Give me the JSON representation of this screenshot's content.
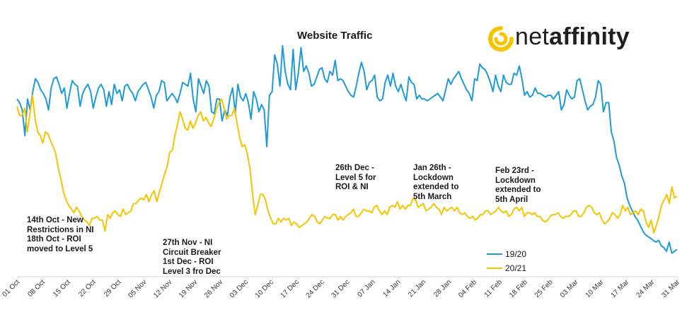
{
  "chart_data": {
    "type": "line",
    "title": "Website Traffic",
    "brand": {
      "prefix": "net",
      "suffix": "affinity",
      "accent": "#F5C400"
    },
    "x_tick_labels": [
      "01 Oct",
      "08 Oct",
      "15 Oct",
      "22 Oct",
      "29 Oct",
      "05 Nov",
      "12 Nov",
      "19 Nov",
      "26 Nov",
      "03 Dec",
      "10 Dec",
      "17 Dec",
      "24 Dec",
      "31 Dec",
      "07 Jan",
      "14 Jan",
      "21 Jan",
      "28 Jan",
      "04 Feb",
      "11 Feb",
      "18 Feb",
      "25 Feb",
      "03 Mar",
      "10 Mar",
      "17 Mar",
      "24 Mar",
      "31 Mar"
    ],
    "ylim": [
      0,
      100
    ],
    "grid": false,
    "legend_position": "bottom-right",
    "series": [
      {
        "name": "19/20",
        "color": "#1E9BD7",
        "values": [
          78,
          76,
          72,
          58,
          78,
          72,
          82,
          89,
          87,
          83,
          81,
          78,
          72,
          84,
          89,
          90,
          86,
          81,
          84,
          73,
          81,
          88,
          86,
          85,
          74,
          81,
          84,
          86,
          82,
          73,
          79,
          84,
          86,
          83,
          74,
          82,
          75,
          86,
          81,
          83,
          77,
          85,
          86,
          83,
          81,
          77,
          82,
          84,
          86,
          87,
          83,
          79,
          73,
          80,
          82,
          88,
          87,
          77,
          79,
          81,
          79,
          76,
          81,
          87,
          86,
          85,
          92,
          78,
          71,
          89,
          85,
          81,
          88,
          85,
          71,
          70,
          78,
          78,
          66,
          72,
          69,
          79,
          84,
          70,
          86,
          79,
          77,
          81,
          76,
          67,
          82,
          78,
          71,
          75,
          72,
          52,
          80,
          82,
          102,
          97,
          85,
          107,
          93,
          86,
          83,
          105,
          83,
          92,
          106,
          93,
          96,
          92,
          85,
          86,
          90,
          94,
          95,
          89,
          87,
          93,
          91,
          99,
          88,
          89,
          88,
          85,
          82,
          80,
          79,
          85,
          92,
          98,
          93,
          83,
          87,
          88,
          91,
          79,
          77,
          78,
          87,
          91,
          85,
          92,
          85,
          82,
          86,
          81,
          77,
          90,
          87,
          86,
          78,
          80,
          78,
          78,
          77,
          78,
          79,
          80,
          81,
          79,
          77,
          83,
          89,
          86,
          89,
          91,
          93,
          89,
          86,
          83,
          81,
          77,
          89,
          88,
          97,
          95,
          94,
          91,
          87,
          82,
          91,
          85,
          82,
          91,
          87,
          86,
          86,
          92,
          91,
          96,
          89,
          80,
          82,
          79,
          80,
          84,
          81,
          81,
          80,
          79,
          80,
          80,
          78,
          80,
          82,
          72,
          75,
          83,
          80,
          78,
          79,
          88,
          89,
          83,
          77,
          72,
          74,
          75,
          79,
          88,
          86,
          71,
          76,
          76,
          60,
          55,
          46,
          42,
          36,
          32,
          24,
          20,
          17,
          14,
          12,
          9,
          6,
          4,
          3,
          2,
          1,
          0,
          1,
          -2,
          -3,
          -5,
          0,
          -6,
          -5,
          -4
        ]
      },
      {
        "name": "20/21",
        "color": "#F5C400",
        "values": [
          74,
          69,
          69,
          73,
          60,
          70,
          80,
          67,
          60,
          58,
          54,
          60,
          59,
          55,
          52,
          48,
          40,
          34,
          27,
          23,
          20,
          18,
          16,
          19,
          17,
          14,
          12,
          11,
          9,
          13,
          13,
          14,
          12,
          12,
          6,
          15,
          13,
          16,
          17,
          15,
          14,
          18,
          15,
          16,
          17,
          21,
          21,
          23,
          24,
          23,
          26,
          22,
          26,
          28,
          22,
          27,
          32,
          37,
          41,
          49,
          50,
          58,
          64,
          71,
          67,
          62,
          61,
          66,
          62,
          65,
          69,
          71,
          66,
          68,
          65,
          63,
          67,
          72,
          76,
          78,
          73,
          67,
          69,
          69,
          73,
          65,
          57,
          52,
          53,
          48,
          40,
          26,
          15,
          20,
          26,
          26,
          23,
          17,
          13,
          10,
          10,
          13,
          11,
          13,
          12,
          13,
          9,
          11,
          10,
          8,
          9,
          10,
          11,
          13,
          15,
          14,
          11,
          10,
          12,
          14,
          13,
          13,
          15,
          15,
          12,
          14,
          12,
          14,
          15,
          16,
          18,
          14,
          14,
          16,
          18,
          17,
          17,
          16,
          19,
          20,
          17,
          15,
          17,
          15,
          19,
          20,
          19,
          22,
          18,
          20,
          18,
          20,
          20,
          24,
          23,
          19,
          20,
          21,
          17,
          18,
          19,
          21,
          19,
          18,
          15,
          19,
          17,
          18,
          19,
          17,
          19,
          16,
          15,
          16,
          14,
          13,
          14,
          12,
          13,
          15,
          15,
          17,
          17,
          15,
          16,
          17,
          19,
          17,
          16,
          17,
          14,
          15,
          18,
          19,
          17,
          19,
          14,
          16,
          16,
          15,
          16,
          14,
          14,
          12,
          11,
          12,
          14,
          15,
          15,
          16,
          14,
          13,
          14,
          14,
          15,
          17,
          17,
          14,
          14,
          16,
          19,
          20,
          19,
          16,
          15,
          16,
          12,
          10,
          11,
          13,
          16,
          15,
          13,
          15,
          20,
          17,
          19,
          15,
          16,
          17,
          15,
          18,
          17,
          11,
          8,
          12,
          5,
          9,
          14,
          20,
          23,
          26,
          21,
          30,
          24,
          25
        ]
      }
    ],
    "annotations": [
      {
        "text": "14th Oct - New\nRestrictions in NI\n18th Oct - ROI\nmoved to Level 5"
      },
      {
        "text": "27th Nov - NI\nCircuit Breaker\n1st Dec - ROI\nLevel 3 fro Dec"
      },
      {
        "text": "26th Dec -\nLevel 5 for\nROI & NI"
      },
      {
        "text": "Jan 26th -\nLockdown\nextended to\n5th March"
      },
      {
        "text": "Feb 23rd -\nLockdown\nextended to\n5th April"
      }
    ]
  }
}
